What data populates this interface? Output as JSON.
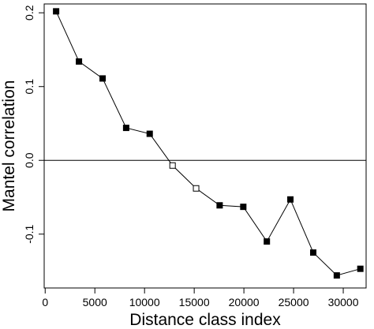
{
  "chart_data": {
    "type": "line",
    "xlabel": "Distance class index",
    "ylabel": "Mantel correlation",
    "x": [
      1100,
      3400,
      5780,
      8150,
      10520,
      12820,
      15190,
      17560,
      19940,
      22310,
      24680,
      26980,
      29350,
      31720
    ],
    "values": [
      0.202,
      0.134,
      0.111,
      0.044,
      0.036,
      -0.007,
      -0.038,
      -0.061,
      -0.063,
      -0.11,
      -0.053,
      -0.125,
      -0.156,
      -0.147
    ],
    "marker_fill": [
      "filled",
      "filled",
      "filled",
      "filled",
      "filled",
      "open",
      "open",
      "filled",
      "filled",
      "filled",
      "filled",
      "filled",
      "filled",
      "filled"
    ],
    "color": "#000000",
    "reference_line": 0,
    "xlim": [
      -100,
      32300
    ],
    "ylim": [
      -0.173,
      0.212
    ],
    "xticks": [
      0,
      5000,
      10000,
      15000,
      20000,
      25000,
      30000
    ],
    "yticks": [
      -0.1,
      {
        "value": 0,
        "label": "0.0"
      },
      0.1,
      0.2
    ]
  }
}
